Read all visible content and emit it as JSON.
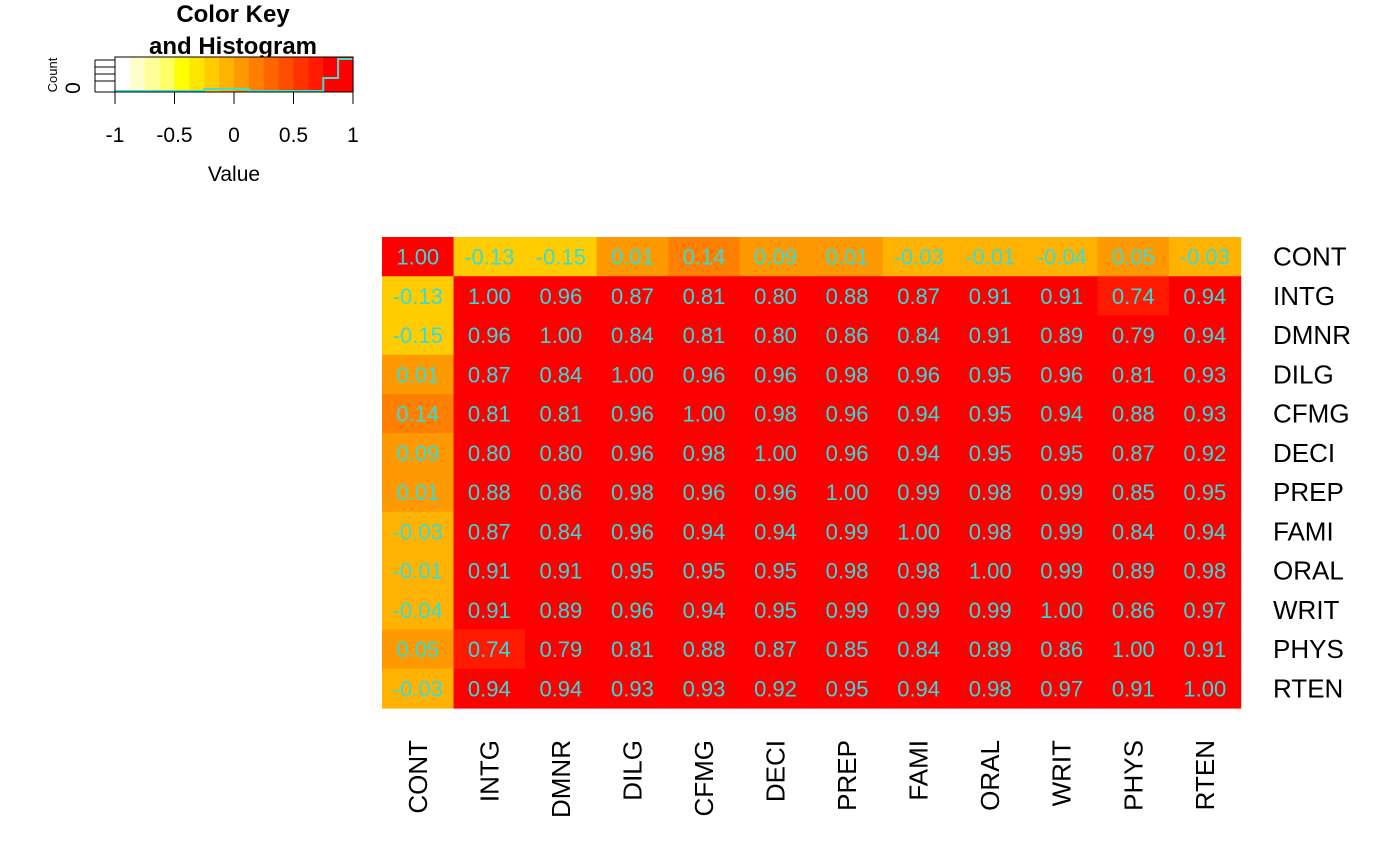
{
  "chart_data": {
    "type": "heatmap",
    "labels": [
      "CONT",
      "INTG",
      "DMNR",
      "DILG",
      "CFMG",
      "DECI",
      "PREP",
      "FAMI",
      "ORAL",
      "WRIT",
      "PHYS",
      "RTEN"
    ],
    "values": [
      [
        1.0,
        -0.13,
        -0.15,
        0.01,
        0.14,
        0.09,
        0.01,
        -0.03,
        -0.01,
        -0.04,
        0.05,
        -0.03
      ],
      [
        -0.13,
        1.0,
        0.96,
        0.87,
        0.81,
        0.8,
        0.88,
        0.87,
        0.91,
        0.91,
        0.74,
        0.94
      ],
      [
        -0.15,
        0.96,
        1.0,
        0.84,
        0.81,
        0.8,
        0.86,
        0.84,
        0.91,
        0.89,
        0.79,
        0.94
      ],
      [
        0.01,
        0.87,
        0.84,
        1.0,
        0.96,
        0.96,
        0.98,
        0.96,
        0.95,
        0.96,
        0.81,
        0.93
      ],
      [
        0.14,
        0.81,
        0.81,
        0.96,
        1.0,
        0.98,
        0.96,
        0.94,
        0.95,
        0.94,
        0.88,
        0.93
      ],
      [
        0.09,
        0.8,
        0.8,
        0.96,
        0.98,
        1.0,
        0.96,
        0.94,
        0.95,
        0.95,
        0.87,
        0.92
      ],
      [
        0.01,
        0.88,
        0.86,
        0.98,
        0.96,
        0.96,
        1.0,
        0.99,
        0.98,
        0.99,
        0.85,
        0.95
      ],
      [
        -0.03,
        0.87,
        0.84,
        0.96,
        0.94,
        0.94,
        0.99,
        1.0,
        0.98,
        0.99,
        0.84,
        0.94
      ],
      [
        -0.01,
        0.91,
        0.91,
        0.95,
        0.95,
        0.95,
        0.98,
        0.98,
        1.0,
        0.99,
        0.89,
        0.98
      ],
      [
        -0.04,
        0.91,
        0.89,
        0.96,
        0.94,
        0.95,
        0.99,
        0.99,
        0.99,
        1.0,
        0.86,
        0.97
      ],
      [
        0.05,
        0.74,
        0.79,
        0.81,
        0.88,
        0.87,
        0.85,
        0.84,
        0.89,
        0.86,
        1.0,
        0.91
      ],
      [
        -0.03,
        0.94,
        0.94,
        0.93,
        0.93,
        0.92,
        0.95,
        0.94,
        0.98,
        0.97,
        0.91,
        1.0
      ]
    ],
    "value_text_color": "#33dddd",
    "color_key": {
      "title_line1": "Color Key",
      "title_line2": "and Histogram",
      "xlabel": "Value",
      "ylabel": "Count",
      "y_tick": "0",
      "range": [
        -1,
        1
      ],
      "ticks": [
        "-1",
        "-0.5",
        "0",
        "0.5",
        "1"
      ],
      "tick_values": [
        -1,
        -0.5,
        0,
        0.5,
        1
      ],
      "histogram_color": "#40e0d0",
      "colors": [
        "#ffffff",
        "#ffffcc",
        "#ffff99",
        "#ffff66",
        "#ffff00",
        "#ffe600",
        "#ffcc00",
        "#ffb300",
        "#ff9900",
        "#ff8000",
        "#ff6600",
        "#ff4d00",
        "#ff3300",
        "#ff1a00",
        "#ff0000",
        "#ff0000"
      ]
    }
  }
}
